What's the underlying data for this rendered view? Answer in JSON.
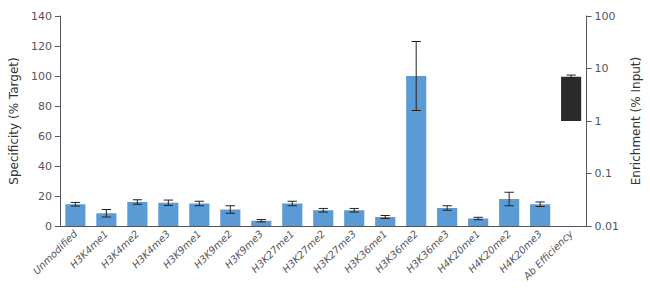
{
  "chart_data": {
    "type": "bar",
    "categories": [
      "Unmodified",
      "H3K4me1",
      "H3K4me2",
      "H3K4me3",
      "H3K9me1",
      "H3K9me2",
      "H3K9me3",
      "H3K27me1",
      "H3K27me2",
      "H3K27me3",
      "H3K36me1",
      "H3K36me2",
      "H3K36me3",
      "H4K20me1",
      "H4K20me2",
      "H4K20me3",
      "Ab Efficiency"
    ],
    "series": [
      {
        "color": "#5B9BD5",
        "values": [
          14.5,
          8.5,
          16.0,
          15.5,
          15.0,
          11.0,
          3.5,
          15.0,
          10.5,
          10.5,
          6.0,
          100.0,
          12.0,
          5.0,
          18.0,
          14.5,
          null
        ],
        "errors": [
          1.2,
          2.5,
          1.5,
          1.8,
          1.5,
          2.5,
          0.8,
          1.5,
          1.2,
          1.2,
          1.0,
          23.0,
          1.5,
          0.8,
          4.5,
          1.5,
          null
        ]
      },
      {
        "color": "#2B2B2B",
        "axis": "y2",
        "values": [
          null,
          null,
          null,
          null,
          null,
          null,
          null,
          null,
          null,
          null,
          null,
          null,
          null,
          null,
          null,
          null,
          7.0
        ],
        "errors": [
          null,
          null,
          null,
          null,
          null,
          null,
          null,
          null,
          null,
          null,
          null,
          null,
          null,
          null,
          null,
          null,
          0.5
        ]
      }
    ],
    "ylabel": "Specificity (% Target)",
    "y2label": "Enrichment (% Input)",
    "ylim": [
      0,
      140
    ],
    "yticks": [
      0,
      20,
      40,
      60,
      80,
      100,
      120,
      140
    ],
    "y2lim": [
      0.01,
      100
    ],
    "y2ticks": [
      0.01,
      0.1,
      1,
      10,
      100
    ],
    "log": "y2",
    "grid": false
  }
}
